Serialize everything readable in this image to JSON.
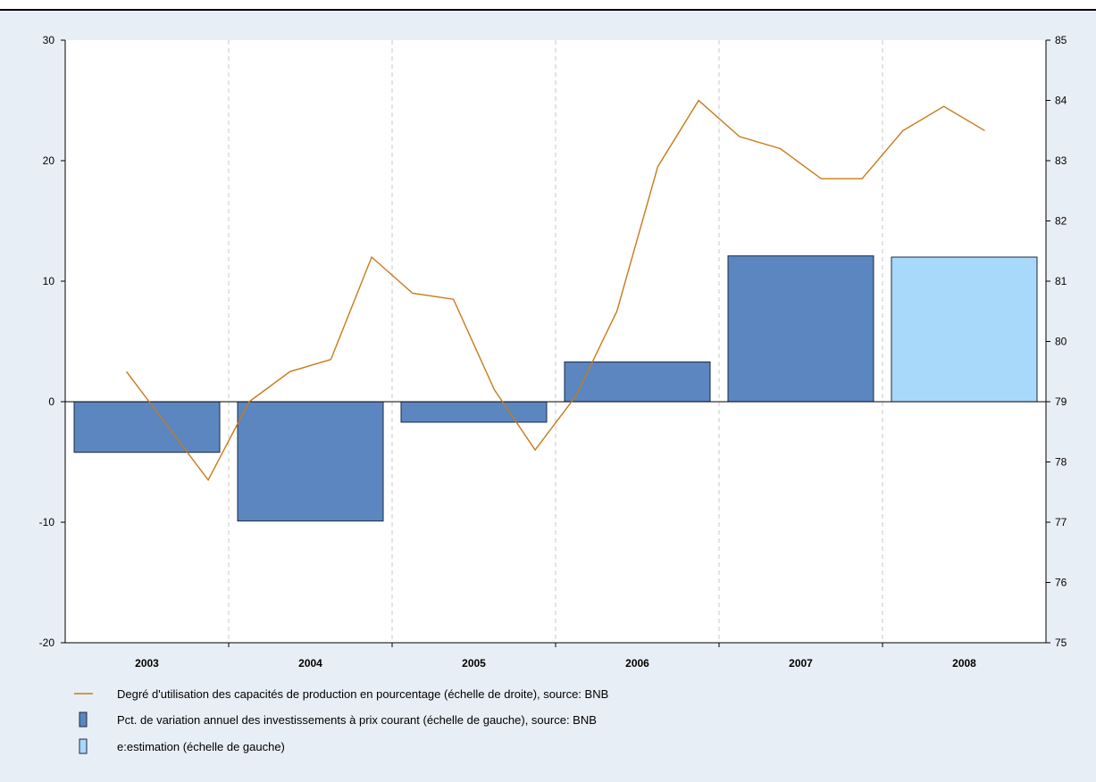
{
  "chart_data": {
    "type": "bar",
    "categories": [
      "2003",
      "2004",
      "2005",
      "2006",
      "2007",
      "2008"
    ],
    "colors": {
      "bar": "#5b86c0",
      "estimate": "#a8d8fa",
      "line": "#c87a1a",
      "plot_background": "#ffffff",
      "frame_background": "#e8eef5"
    },
    "left_axis": {
      "ylim": [
        -20,
        30
      ],
      "ticks": [
        30,
        20,
        10,
        0,
        -10,
        -20
      ]
    },
    "right_axis": {
      "ylim": [
        75,
        85
      ],
      "ticks": [
        85,
        84,
        83,
        82,
        81,
        80,
        79,
        78,
        77,
        76,
        75
      ]
    },
    "bars": [
      {
        "category": "2003",
        "value": -4.2,
        "estimate": false
      },
      {
        "category": "2004",
        "value": -9.9,
        "estimate": false
      },
      {
        "category": "2005",
        "value": -1.7,
        "estimate": false
      },
      {
        "category": "2006",
        "value": 3.3,
        "estimate": false
      },
      {
        "category": "2007",
        "value": 12.1,
        "estimate": false
      },
      {
        "category": "2008",
        "value": 12.0,
        "estimate": true
      }
    ],
    "line": {
      "axis": "right",
      "x": [
        2002.875,
        2003.125,
        2003.375,
        2003.625,
        2003.875,
        2004.125,
        2004.375,
        2004.625,
        2004.875,
        2005.125,
        2005.375,
        2005.625,
        2005.875,
        2006.125,
        2006.375,
        2006.625,
        2006.875,
        2007.125,
        2007.375,
        2007.625,
        2007.875,
        2008.125
      ],
      "y": [
        79.5,
        78.6,
        77.7,
        79.0,
        79.5,
        79.7,
        81.4,
        80.8,
        80.7,
        79.2,
        78.2,
        79.1,
        80.5,
        82.9,
        84.0,
        83.4,
        83.2,
        82.7,
        82.7,
        83.5,
        83.9,
        83.5
      ]
    },
    "legend": [
      {
        "key": "line",
        "label": "Degré d'utilisation des capacités de production en pourcentage (échelle de droite), source: BNB"
      },
      {
        "key": "bar",
        "label": "Pct. de variation annuel des investissements à prix courant (échelle de gauche), source: BNB"
      },
      {
        "key": "estimate",
        "label": "e:estimation (échelle de gauche)"
      }
    ],
    "grid": "vertical dashed separators between years",
    "legend_position": "bottom-left"
  }
}
